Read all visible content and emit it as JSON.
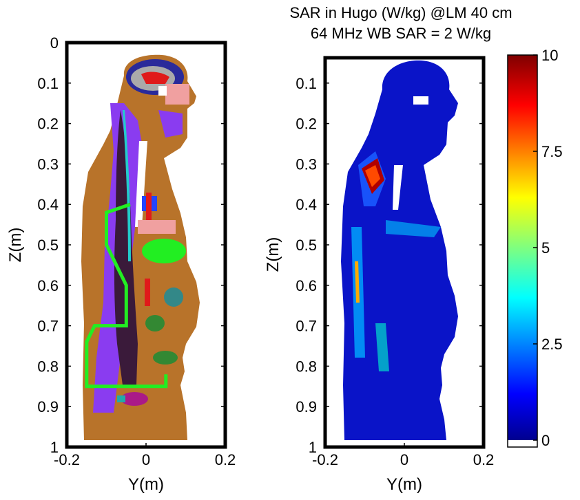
{
  "figure": {
    "title_line1": "SAR in Hugo (W/kg) @LM 40 cm",
    "title_line2": "64 MHz WB SAR = 2 W/kg"
  },
  "chart_data": [
    {
      "type": "heatmap",
      "title": "",
      "xlabel": "Y(m)",
      "ylabel": "Z(m)",
      "xlim": [
        -0.2,
        0.2
      ],
      "ylim": [
        1,
        0
      ],
      "x_ticks": [
        -0.2,
        0,
        0.2
      ],
      "x_tick_labels": [
        "-0.2",
        "0",
        "0.2"
      ],
      "y_ticks": [
        0,
        0.1,
        0.2,
        0.3,
        0.4,
        0.5,
        0.6,
        0.7,
        0.8,
        0.9,
        1
      ],
      "y_tick_labels": [
        "0",
        "0.1",
        "0.2",
        "0.3",
        "0.4",
        "0.5",
        "0.6",
        "0.7",
        "0.8",
        "0.9",
        "1"
      ],
      "grid": false,
      "overlay_line": {
        "color": "#22ee22",
        "y": [
          -0.04,
          -0.1,
          -0.1,
          -0.05,
          -0.05,
          -0.13,
          -0.15,
          -0.15,
          0.05,
          0.05
        ],
        "z": [
          0.4,
          0.42,
          0.5,
          0.6,
          0.7,
          0.7,
          0.74,
          0.85,
          0.85,
          0.82
        ]
      }
    },
    {
      "type": "heatmap",
      "title": "",
      "xlabel": "Y(m)",
      "ylabel": "Z(m)",
      "xlim": [
        -0.2,
        0.2
      ],
      "ylim": [
        1,
        0
      ],
      "x_ticks": [
        -0.2,
        0,
        0.2
      ],
      "x_tick_labels": [
        "-0.2",
        "0",
        "0.2"
      ],
      "y_ticks": [
        0.1,
        0.2,
        0.3,
        0.4,
        0.5,
        0.6,
        0.7,
        0.8,
        0.9,
        1
      ],
      "y_tick_labels": [
        "0.1",
        "0.2",
        "0.3",
        "0.4",
        "0.5",
        "0.6",
        "0.7",
        "0.8",
        "0.9",
        "1"
      ],
      "grid": false,
      "colorbar": {
        "range": [
          0,
          10
        ],
        "ticks": [
          0,
          2.5,
          5,
          7.5,
          10
        ],
        "tick_labels": [
          "0",
          "2.5",
          "5",
          "7.5",
          "10"
        ],
        "colormap": "jet"
      }
    }
  ],
  "colors": {
    "skin_fat": "#b8732a",
    "muscle": "#8a3cf0",
    "spine": "#3a1a3a",
    "lung": "#22dd22",
    "sar_low": "#0a14c8",
    "sar_high": "#8a0000"
  }
}
